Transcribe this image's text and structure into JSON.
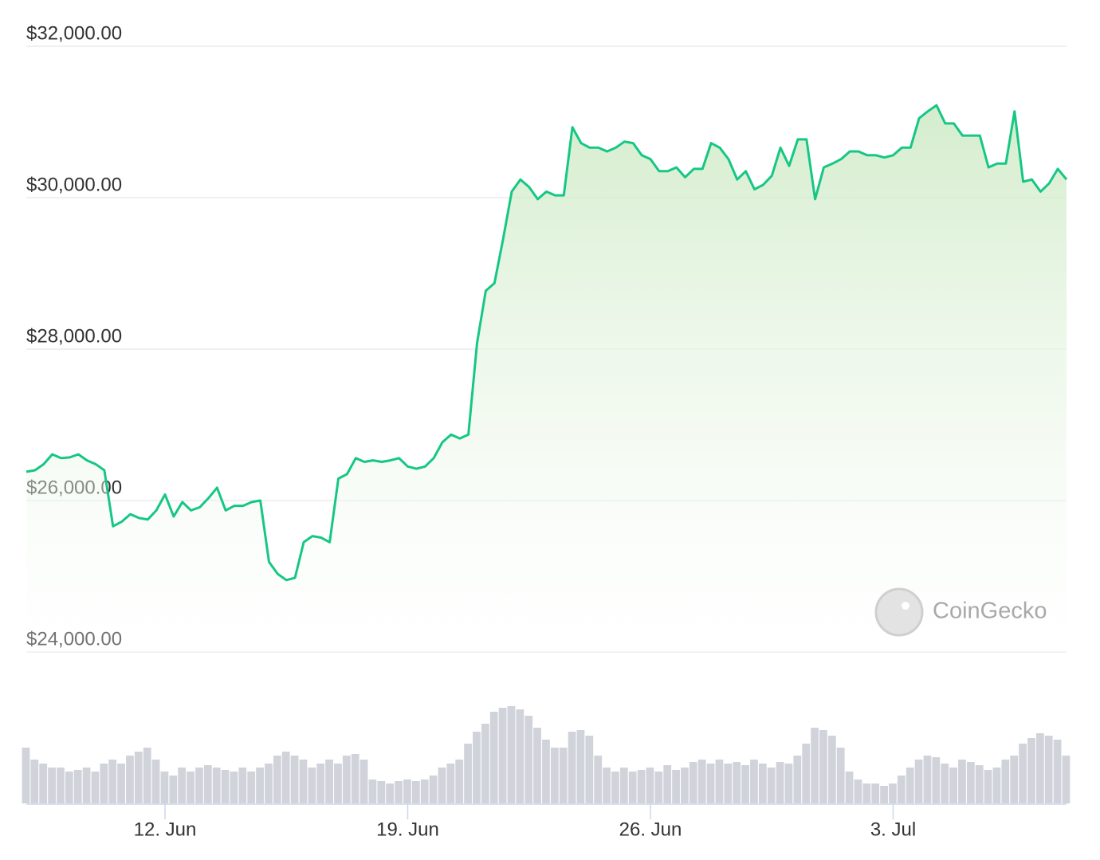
{
  "chart_data": {
    "type": "line",
    "categories": [
      null,
      null,
      null,
      null,
      null,
      null,
      null,
      null,
      null,
      null,
      null,
      null,
      null,
      null,
      null,
      null,
      "12. Jun",
      null,
      null,
      null,
      null,
      null,
      null,
      null,
      null,
      null,
      null,
      null,
      null,
      null,
      null,
      null,
      null,
      null,
      null,
      null,
      null,
      null,
      null,
      null,
      null,
      null,
      null,
      null,
      "19. Jun",
      null,
      null,
      null,
      null,
      null,
      null,
      null,
      null,
      null,
      null,
      null,
      null,
      null,
      null,
      null,
      null,
      null,
      null,
      null,
      null,
      null,
      null,
      null,
      null,
      null,
      null,
      null,
      "26. Jun",
      null,
      null,
      null,
      null,
      null,
      null,
      null,
      null,
      null,
      null,
      null,
      null,
      null,
      null,
      null,
      null,
      null,
      null,
      null,
      null,
      null,
      null,
      null,
      null,
      null,
      null,
      null,
      "3. Jul",
      null,
      null,
      null,
      null,
      null,
      null,
      null,
      null,
      null,
      null,
      null,
      null,
      null,
      null,
      null,
      null,
      null,
      null,
      null,
      null
    ],
    "series": [
      {
        "color": "#16c784",
        "values": [
          26380,
          26400,
          26480,
          26610,
          26560,
          26570,
          26610,
          26530,
          26480,
          26400,
          25660,
          25720,
          25820,
          25770,
          25750,
          25870,
          26080,
          25790,
          25980,
          25870,
          25910,
          26030,
          26170,
          25870,
          25930,
          25930,
          25980,
          26000,
          25190,
          25030,
          24950,
          24980,
          25450,
          25530,
          25510,
          25450,
          26290,
          26350,
          26560,
          26510,
          26530,
          26510,
          26530,
          26560,
          26450,
          26420,
          26450,
          26560,
          26770,
          26870,
          26820,
          26870,
          28080,
          28770,
          28870,
          29450,
          30080,
          30240,
          30140,
          29980,
          30080,
          30030,
          30030,
          30930,
          30720,
          30660,
          30660,
          30610,
          30660,
          30740,
          30720,
          30560,
          30510,
          30350,
          30350,
          30400,
          30270,
          30380,
          30380,
          30720,
          30660,
          30510,
          30240,
          30350,
          30110,
          30170,
          30290,
          30660,
          30420,
          30770,
          30770,
          29980,
          30400,
          30450,
          30510,
          30610,
          30610,
          30560,
          30560,
          30530,
          30560,
          30660,
          30660,
          31050,
          31140,
          31220,
          30980,
          30980,
          30820,
          30820,
          30820,
          30400,
          30450,
          30450,
          31140,
          30210,
          30240,
          30080,
          30190,
          30380,
          30240
        ]
      }
    ],
    "area": true,
    "ylim": [
      24000,
      32000
    ],
    "yticks": [
      {
        "value": 24000,
        "label": "$24,000.00"
      },
      {
        "value": 26000,
        "label": "$26,000.00"
      },
      {
        "value": 28000,
        "label": "$28,000.00"
      },
      {
        "value": 30000,
        "label": "$30,000.00"
      },
      {
        "value": 32000,
        "label": "$32,000.00"
      }
    ],
    "grid": true,
    "volume": {
      "color": "#d1d3db",
      "ylim": [
        0,
        130
      ],
      "values": [
        70,
        55,
        50,
        45,
        45,
        40,
        42,
        45,
        40,
        50,
        55,
        50,
        60,
        65,
        70,
        55,
        40,
        35,
        45,
        40,
        45,
        48,
        45,
        42,
        40,
        45,
        40,
        45,
        50,
        60,
        65,
        60,
        55,
        45,
        50,
        55,
        50,
        60,
        62,
        55,
        30,
        28,
        25,
        28,
        30,
        28,
        30,
        35,
        45,
        50,
        55,
        75,
        90,
        100,
        115,
        120,
        122,
        118,
        110,
        95,
        80,
        70,
        70,
        90,
        92,
        85,
        60,
        45,
        40,
        45,
        40,
        42,
        45,
        40,
        48,
        42,
        45,
        52,
        55,
        50,
        55,
        50,
        52,
        48,
        55,
        50,
        45,
        52,
        50,
        60,
        75,
        95,
        92,
        85,
        70,
        40,
        30,
        25,
        25,
        22,
        25,
        35,
        45,
        55,
        60,
        58,
        50,
        45,
        55,
        52,
        48,
        42,
        45,
        55,
        60,
        75,
        82,
        88,
        85,
        80,
        60
      ]
    },
    "watermark": "CoinGecko"
  }
}
